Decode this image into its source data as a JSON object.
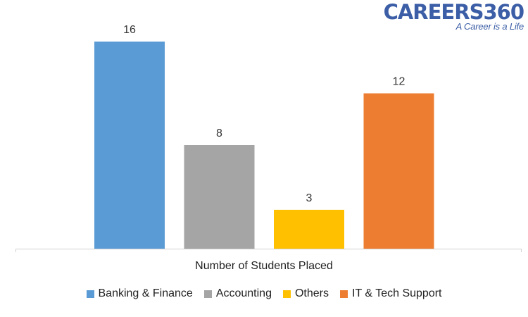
{
  "logo": {
    "name": "CAREERS360",
    "tagline": "A Career is a Life"
  },
  "chart_data": {
    "type": "bar",
    "title": "",
    "xlabel": "Number of Students Placed",
    "ylabel": "",
    "ylim": [
      0,
      16
    ],
    "grid": false,
    "legend_position": "bottom",
    "categories": [
      "Banking & Finance",
      "Accounting",
      "Others",
      "IT & Tech Support"
    ],
    "values": [
      16,
      8,
      3,
      12
    ],
    "colors": [
      "#5b9bd5",
      "#a5a5a5",
      "#ffc000",
      "#ed7d31"
    ]
  }
}
